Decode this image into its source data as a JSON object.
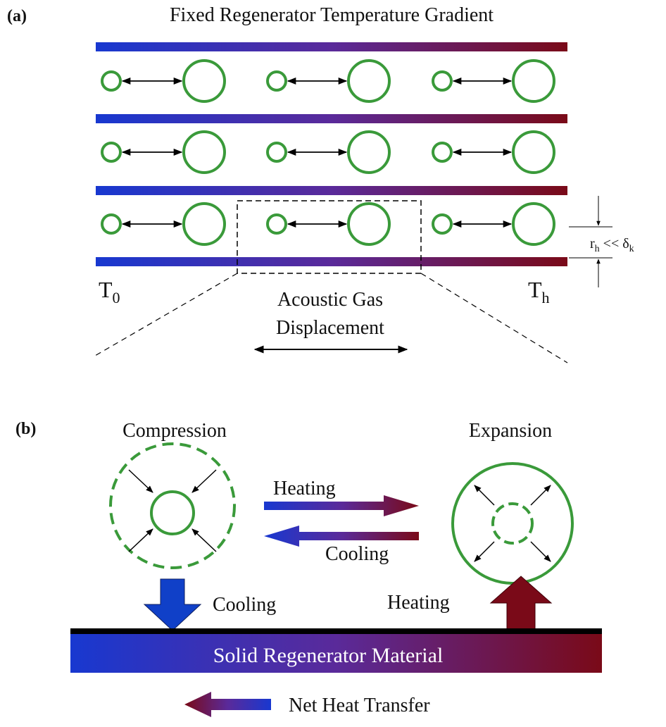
{
  "panel_a": {
    "label": "(a)",
    "title": "Fixed Regenerator Temperature Gradient",
    "cold_end": {
      "symbol": "T",
      "subscript": "0"
    },
    "hot_end": {
      "symbol": "T",
      "subscript": "h"
    },
    "scale": {
      "symbol": "r",
      "subscript": "h",
      "relation": " << δ",
      "relation_subscript": "k"
    },
    "zoom_label": [
      "Acoustic Gas",
      "Displacement"
    ]
  },
  "panel_b": {
    "label": "(b)",
    "compression": "Compression",
    "expansion": "Expansion",
    "gas_heating": "Heating",
    "gas_cooling": "Cooling",
    "solid_cooling": "Cooling",
    "solid_heating": "Heating",
    "material": "Solid Regenerator Material",
    "net": "Net Heat Transfer"
  }
}
